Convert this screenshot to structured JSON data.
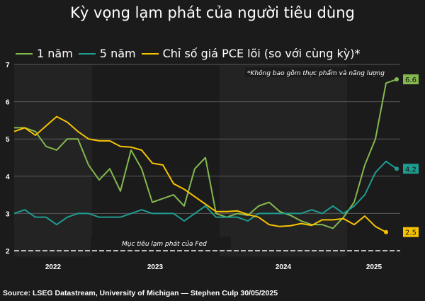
{
  "chart_data": {
    "type": "line",
    "title": "Kỳ vọng lạm phát của người tiêu dùng",
    "xlabel": "",
    "ylabel": "",
    "ylim": [
      2,
      7
    ],
    "yticks": [
      "2",
      "3",
      "4",
      "5",
      "6",
      "7"
    ],
    "year_labels": [
      "2022",
      "2023",
      "2024",
      "2025"
    ],
    "x_start": "2022-05",
    "x_end": "2025-05",
    "legend_position": "top",
    "grid": true,
    "series": [
      {
        "name": "1 năm",
        "color": "#84b84f",
        "end_label": "6.6",
        "values": [
          5.3,
          5.3,
          5.2,
          4.8,
          4.7,
          5.0,
          5.0,
          4.3,
          3.9,
          4.2,
          3.6,
          4.7,
          4.2,
          3.3,
          3.4,
          3.5,
          3.2,
          4.2,
          4.5,
          3.0,
          2.9,
          3.0,
          2.95,
          3.2,
          3.3,
          3.05,
          2.95,
          2.8,
          2.7,
          2.7,
          2.6,
          2.9,
          3.3,
          4.3,
          5.0,
          6.5,
          6.6
        ]
      },
      {
        "name": "5 năm",
        "color": "#1e9c90",
        "end_label": "4.2",
        "values": [
          3.0,
          3.1,
          2.9,
          2.9,
          2.7,
          2.9,
          3.0,
          3.0,
          2.9,
          2.9,
          2.9,
          3.0,
          3.1,
          3.0,
          3.0,
          3.0,
          2.8,
          3.0,
          3.2,
          2.9,
          2.9,
          2.9,
          2.8,
          3.0,
          3.0,
          3.0,
          3.0,
          3.0,
          3.1,
          3.0,
          3.2,
          3.0,
          3.2,
          3.5,
          4.1,
          4.4,
          4.2
        ]
      },
      {
        "name": "Chỉ số giá PCE lõi (so với cùng kỳ)*",
        "color": "#f7c300",
        "end_label": "2.5",
        "values": [
          5.2,
          5.3,
          5.1,
          5.35,
          5.6,
          5.45,
          5.2,
          5.0,
          4.95,
          4.95,
          4.8,
          4.78,
          4.7,
          4.35,
          4.3,
          3.8,
          3.65,
          3.45,
          3.25,
          3.05,
          3.05,
          3.07,
          2.97,
          2.9,
          2.7,
          2.65,
          2.67,
          2.73,
          2.68,
          2.83,
          2.83,
          2.86,
          2.7,
          2.93,
          2.65,
          2.5
        ]
      }
    ],
    "reference_line": {
      "value": 2,
      "label": "Mục tiêu lạm phát của Fed"
    },
    "annotation": "*Không bao gồm thực phẩm và năng lượng"
  },
  "source": "Source: LSEG Datastream, University of Michigan — Stephen Culp 30/05/2025"
}
